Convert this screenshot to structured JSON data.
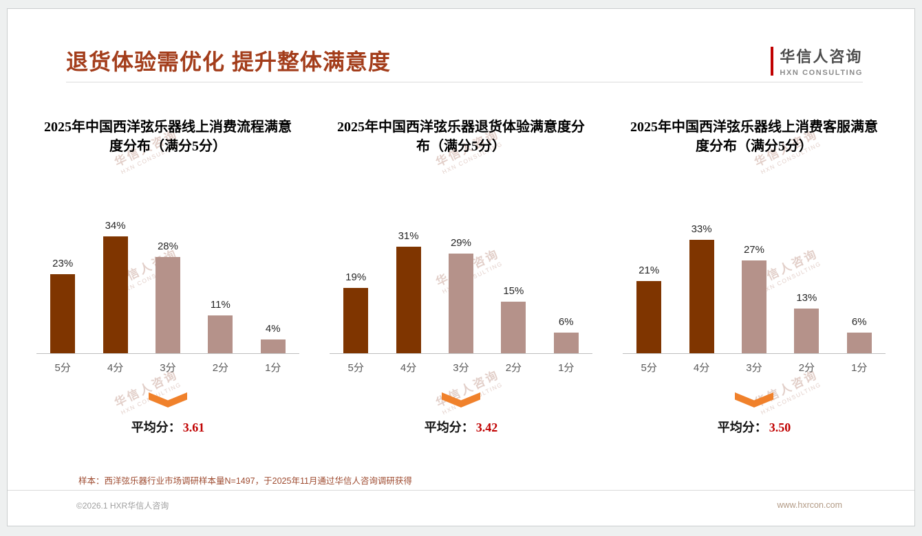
{
  "page": {
    "title": "退货体验需优化 提升整体满意度",
    "logo_name": "华信人咨询",
    "logo_subtitle": "HXN CONSULTING",
    "footnote": "样本：西洋弦乐器行业市场调研样本量N=1497，于2025年11月通过华信人咨询调研获得",
    "copyright": "©2026.1 HXR华信人咨询",
    "website": "www.hxrcon.com"
  },
  "watermark": {
    "line1": "华信人咨询",
    "line2": "HXN CONSULTING"
  },
  "colors": {
    "title": "#A33D1B",
    "bar_palette": {
      "dark": "#7F3500",
      "light": "#B5928A"
    },
    "arrow": "#F0812B",
    "average_value": "#C00000"
  },
  "chart_data": [
    {
      "type": "bar",
      "title": "2025年中国西洋弦乐器线上消费流程满意度分布（满分5分）",
      "categories": [
        "5分",
        "4分",
        "3分",
        "2分",
        "1分"
      ],
      "values": [
        23,
        34,
        28,
        11,
        4
      ],
      "unit": "%",
      "bar_styles": [
        "dark",
        "dark",
        "light",
        "light",
        "light"
      ],
      "average_label": "平均分：",
      "average": "3.61",
      "ylim": [
        0,
        40
      ],
      "grid": false,
      "legend": false
    },
    {
      "type": "bar",
      "title": "2025年中国西洋弦乐器退货体验满意度分布（满分5分）",
      "categories": [
        "5分",
        "4分",
        "3分",
        "2分",
        "1分"
      ],
      "values": [
        19,
        31,
        29,
        15,
        6
      ],
      "unit": "%",
      "bar_styles": [
        "dark",
        "dark",
        "light",
        "light",
        "light"
      ],
      "average_label": "平均分：",
      "average": "3.42",
      "ylim": [
        0,
        40
      ],
      "grid": false,
      "legend": false
    },
    {
      "type": "bar",
      "title": "2025年中国西洋弦乐器线上消费客服满意度分布（满分5分）",
      "categories": [
        "5分",
        "4分",
        "3分",
        "2分",
        "1分"
      ],
      "values": [
        21,
        33,
        27,
        13,
        6
      ],
      "unit": "%",
      "bar_styles": [
        "dark",
        "dark",
        "light",
        "light",
        "light"
      ],
      "average_label": "平均分：",
      "average": "3.50",
      "ylim": [
        0,
        40
      ],
      "grid": false,
      "legend": false
    }
  ]
}
